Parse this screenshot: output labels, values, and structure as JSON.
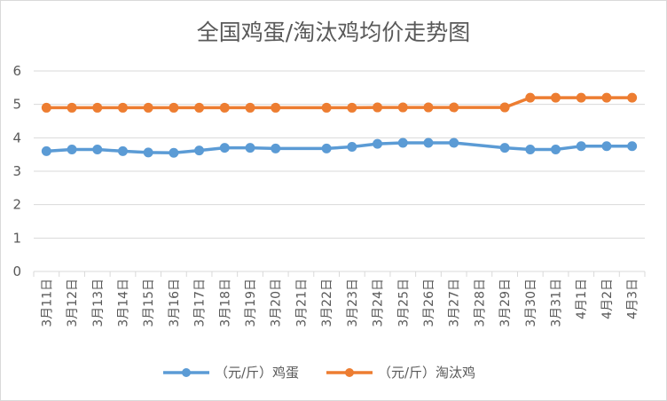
{
  "chart_data": {
    "type": "line",
    "title": "全国鸡蛋/淘汰鸡均价走势图",
    "xlabel": "",
    "ylabel": "",
    "ylim": [
      0,
      6
    ],
    "yticks": [
      "0",
      "1",
      "2",
      "3",
      "4",
      "5",
      "6"
    ],
    "grid": true,
    "legend_position": "bottom",
    "categories": [
      "3月11日",
      "3月12日",
      "3月13日",
      "3月14日",
      "3月15日",
      "3月16日",
      "3月17日",
      "3月18日",
      "3月19日",
      "3月20日",
      "3月21日",
      "3月22日",
      "3月23日",
      "3月24日",
      "3月25日",
      "3月26日",
      "3月27日",
      "3月28日",
      "3月29日",
      "3月30日",
      "3月31日",
      "4月1日",
      "4月2日",
      "4月3日"
    ],
    "series": [
      {
        "name": "（元/斤）鸡蛋",
        "color": "#5b9bd5",
        "values": [
          3.6,
          3.65,
          3.65,
          3.6,
          3.56,
          3.55,
          3.62,
          3.7,
          3.7,
          3.68,
          null,
          3.68,
          3.73,
          3.82,
          3.85,
          3.85,
          3.85,
          null,
          3.7,
          3.65,
          3.65,
          3.75,
          3.75,
          3.75
        ]
      },
      {
        "name": "（元/斤）淘汰鸡",
        "color": "#ed7d31",
        "values": [
          4.9,
          4.9,
          4.9,
          4.9,
          4.9,
          4.9,
          4.9,
          4.9,
          4.9,
          4.9,
          null,
          4.9,
          4.9,
          4.91,
          4.91,
          4.91,
          4.91,
          null,
          4.91,
          5.2,
          5.2,
          5.2,
          5.2,
          5.2
        ]
      }
    ]
  }
}
